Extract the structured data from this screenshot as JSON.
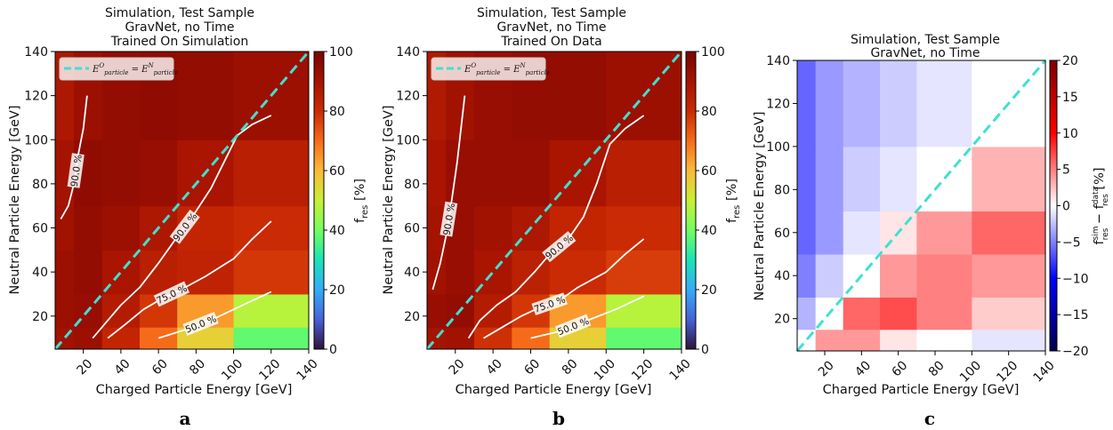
{
  "chart_data": [
    {
      "type": "heatmap",
      "panel_label": "a",
      "title": [
        "Simulation, Test Sample",
        "GravNet, no Time",
        "Trained On Simulation"
      ],
      "xlabel": "Charged Particle Energy [GeV]",
      "ylabel": "Neutral Particle Energy [GeV]",
      "x_edges": [
        5,
        15,
        30,
        50,
        70,
        100,
        140
      ],
      "y_edges": [
        5,
        15,
        30,
        50,
        70,
        100,
        140
      ],
      "xticks": [
        20,
        40,
        60,
        80,
        100,
        120,
        140
      ],
      "yticks": [
        20,
        40,
        60,
        80,
        100,
        120,
        140
      ],
      "xlim": [
        5,
        140
      ],
      "ylim": [
        5,
        140
      ],
      "values": [
        [
          91,
          92,
          82,
          70,
          56,
          38
        ],
        [
          92,
          93,
          86,
          78,
          64,
          48
        ],
        [
          92,
          94,
          89,
          85,
          83,
          78
        ],
        [
          91,
          94,
          92,
          88,
          82,
          80
        ],
        [
          90,
          95,
          94,
          93,
          89,
          85
        ],
        [
          88,
          92,
          94,
          95,
          94,
          92
        ]
      ],
      "colorbar": {
        "label": "f_res [%]",
        "min": 0,
        "max": 100,
        "ticks": [
          0,
          20,
          40,
          60,
          80,
          100
        ],
        "colormap": "turbo"
      },
      "diagonal_legend": "E^O_particle = E^N_particle",
      "diagonal_color": "#40e0d0",
      "contours": [
        {
          "label": "90.0 %",
          "points": [
            [
              8,
              64
            ],
            [
              12,
              70
            ],
            [
              15,
              80
            ],
            [
              17,
              92
            ],
            [
              20,
              105
            ],
            [
              22,
              120
            ]
          ]
        },
        {
          "label": "90.0 %",
          "points": [
            [
              25,
              10
            ],
            [
              32,
              17
            ],
            [
              40,
              25
            ],
            [
              50,
              33
            ],
            [
              60,
              44
            ],
            [
              70,
              56
            ],
            [
              78,
              65
            ],
            [
              88,
              78
            ],
            [
              95,
              90
            ],
            [
              102,
              102
            ],
            [
              110,
              107
            ],
            [
              120,
              111
            ]
          ]
        },
        {
          "label": "75.0 %",
          "points": [
            [
              33,
              10
            ],
            [
              42,
              16
            ],
            [
              52,
              23
            ],
            [
              62,
              28
            ],
            [
              72,
              32
            ],
            [
              85,
              38
            ],
            [
              100,
              46
            ],
            [
              110,
              55
            ],
            [
              120,
              63
            ]
          ]
        },
        {
          "label": "50.0 %",
          "points": [
            [
              60,
              10
            ],
            [
              75,
              14
            ],
            [
              90,
              19
            ],
            [
              105,
              25
            ],
            [
              120,
              31
            ]
          ]
        }
      ]
    },
    {
      "type": "heatmap",
      "panel_label": "b",
      "title": [
        "Simulation, Test Sample",
        "GravNet, no Time",
        "Trained On Data"
      ],
      "xlabel": "Charged Particle Energy [GeV]",
      "ylabel": "Neutral Particle Energy [GeV]",
      "x_edges": [
        5,
        15,
        30,
        50,
        70,
        100,
        140
      ],
      "y_edges": [
        5,
        15,
        30,
        50,
        70,
        100,
        140
      ],
      "xticks": [
        20,
        40,
        60,
        80,
        100,
        120,
        140
      ],
      "yticks": [
        20,
        40,
        60,
        80,
        100,
        120,
        140
      ],
      "xlim": [
        5,
        140
      ],
      "ylim": [
        5,
        140
      ],
      "values": [
        [
          90,
          91,
          79,
          70,
          56,
          38
        ],
        [
          93,
          94,
          86,
          78,
          64,
          48
        ],
        [
          91,
          93,
          89,
          84,
          80,
          77
        ],
        [
          90,
          93,
          91,
          88,
          82,
          80
        ],
        [
          89,
          93,
          93,
          93,
          89,
          85
        ],
        [
          87,
          91,
          93,
          94,
          94,
          92
        ]
      ],
      "colorbar": {
        "label": "f_res [%]",
        "min": 0,
        "max": 100,
        "ticks": [
          0,
          20,
          40,
          60,
          80,
          100
        ],
        "colormap": "turbo"
      },
      "diagonal_legend": "E^O_particle = E^N_particle",
      "diagonal_color": "#40e0d0",
      "contours": [
        {
          "label": "90.0 %",
          "points": [
            [
              8,
              32
            ],
            [
              12,
              44
            ],
            [
              15,
              56
            ],
            [
              18,
              72
            ],
            [
              21,
              90
            ],
            [
              23,
              105
            ],
            [
              25,
              120
            ]
          ]
        },
        {
          "label": "90.0 %",
          "points": [
            [
              27,
              10
            ],
            [
              33,
              18
            ],
            [
              42,
              25
            ],
            [
              52,
              31
            ],
            [
              62,
              40
            ],
            [
              70,
              48
            ],
            [
              80,
              55
            ],
            [
              88,
              65
            ],
            [
              95,
              80
            ],
            [
              102,
              98
            ],
            [
              110,
              105
            ],
            [
              120,
              111
            ]
          ]
        },
        {
          "label": "75.0 %",
          "points": [
            [
              35,
              10
            ],
            [
              45,
              15
            ],
            [
              55,
              20
            ],
            [
              65,
              24
            ],
            [
              75,
              27
            ],
            [
              85,
              33
            ],
            [
              100,
              40
            ],
            [
              110,
              48
            ],
            [
              120,
              55
            ]
          ]
        },
        {
          "label": "50.0 %",
          "points": [
            [
              60,
              10
            ],
            [
              75,
              13
            ],
            [
              90,
              18
            ],
            [
              105,
              23
            ],
            [
              120,
              29
            ]
          ]
        }
      ]
    },
    {
      "type": "heatmap",
      "panel_label": "c",
      "title": [
        "Simulation, Test Sample",
        "GravNet, no Time"
      ],
      "xlabel": "Charged Particle Energy [GeV]",
      "ylabel": "Neutral Particle Energy [GeV]",
      "x_edges": [
        5,
        15,
        30,
        50,
        70,
        100,
        140
      ],
      "y_edges": [
        5,
        15,
        30,
        50,
        70,
        100,
        140
      ],
      "xticks": [
        20,
        40,
        60,
        80,
        100,
        120,
        140
      ],
      "yticks": [
        20,
        40,
        60,
        80,
        100,
        120,
        140
      ],
      "xlim": [
        5,
        140
      ],
      "ylim": [
        5,
        140
      ],
      "values": [
        [
          0,
          4,
          4,
          1,
          0,
          -1
        ],
        [
          -3,
          0,
          6,
          7,
          5,
          2
        ],
        [
          -5,
          -2,
          0,
          4,
          5,
          4
        ],
        [
          -6,
          -4,
          -1,
          1,
          4,
          6
        ],
        [
          -6,
          -4,
          -2,
          -1,
          0,
          3
        ],
        [
          -6,
          -4,
          -3,
          -2,
          -1,
          0
        ]
      ],
      "colorbar": {
        "label": "f_res^sim − f_res^data [%]",
        "min": -20,
        "max": 20,
        "ticks": [
          -20,
          -15,
          -10,
          -5,
          0,
          5,
          10,
          15,
          20
        ],
        "colormap": "seismic"
      },
      "diagonal_color": "#40e0d0"
    }
  ]
}
